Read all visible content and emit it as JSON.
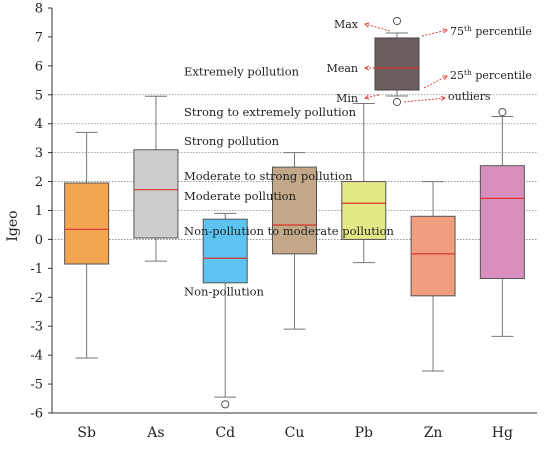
{
  "chart_data": {
    "type": "box",
    "ylabel": "Igeo",
    "xlabel": "",
    "title": "",
    "ylim": [
      -6,
      8
    ],
    "y_ticks": [
      "-6",
      "-5",
      "-4",
      "-3",
      "-2",
      "-1",
      "0",
      "1",
      "2",
      "3",
      "4",
      "5",
      "6",
      "7",
      "8"
    ],
    "categories": [
      "Sb",
      "As",
      "Cd",
      "Cu",
      "Pb",
      "Zn",
      "Hg"
    ],
    "colors": [
      "#f4a54f",
      "#cdcdcd",
      "#5ec3f0",
      "#c2a888",
      "#e3e984",
      "#ef9f7f",
      "#d98fbe"
    ],
    "boxes": [
      {
        "name": "Sb",
        "min": -4.1,
        "q1": -0.85,
        "mean": 0.35,
        "q3": 1.95,
        "max": 3.7,
        "outliers": []
      },
      {
        "name": "As",
        "min": -0.75,
        "q1": 0.05,
        "mean": 1.72,
        "q3": 3.1,
        "max": 4.95,
        "outliers": []
      },
      {
        "name": "Cd",
        "min": -5.45,
        "q1": -1.5,
        "mean": -0.65,
        "q3": 0.7,
        "max": 0.9,
        "outliers": [
          -5.7
        ]
      },
      {
        "name": "Cu",
        "min": -3.1,
        "q1": -0.5,
        "mean": 0.5,
        "q3": 2.5,
        "max": 3.0,
        "outliers": []
      },
      {
        "name": "Pb",
        "min": -0.8,
        "q1": 0.0,
        "mean": 1.25,
        "q3": 2.0,
        "max": 4.7,
        "outliers": []
      },
      {
        "name": "Zn",
        "min": -4.55,
        "q1": -1.95,
        "mean": -0.5,
        "q3": 0.8,
        "max": 2.0,
        "outliers": []
      },
      {
        "name": "Hg",
        "min": -3.35,
        "q1": -1.35,
        "mean": 1.42,
        "q3": 2.55,
        "max": 4.25,
        "outliers": [
          4.4
        ]
      }
    ],
    "mean_line_color": "#d9342b",
    "reference_lines": [
      0,
      1,
      2,
      3,
      4,
      5
    ],
    "zone_labels": [
      {
        "text": "Extremely pollution",
        "y": 5.8
      },
      {
        "text": "Strong to extremely pollution",
        "y": 4.4
      },
      {
        "text": "Strong pollution",
        "y": 3.4
      },
      {
        "text": "Moderate to strong pollution",
        "y": 2.2
      },
      {
        "text": "Moderate pollution",
        "y": 1.5
      },
      {
        "text": "Non-pollution to moderate pollution",
        "y": 0.3
      },
      {
        "text": "Non-pollution",
        "y": -1.8
      }
    ],
    "legend": {
      "max": "Max",
      "mean": "Mean",
      "min": "Min",
      "p75": "75",
      "p75_sup": "th",
      "p75_suffix": " percentile",
      "p25": "25",
      "p25_sup": "th",
      "p25_suffix": " percentile",
      "outliers": "outliers",
      "box_color": "#6b5f5d"
    }
  }
}
